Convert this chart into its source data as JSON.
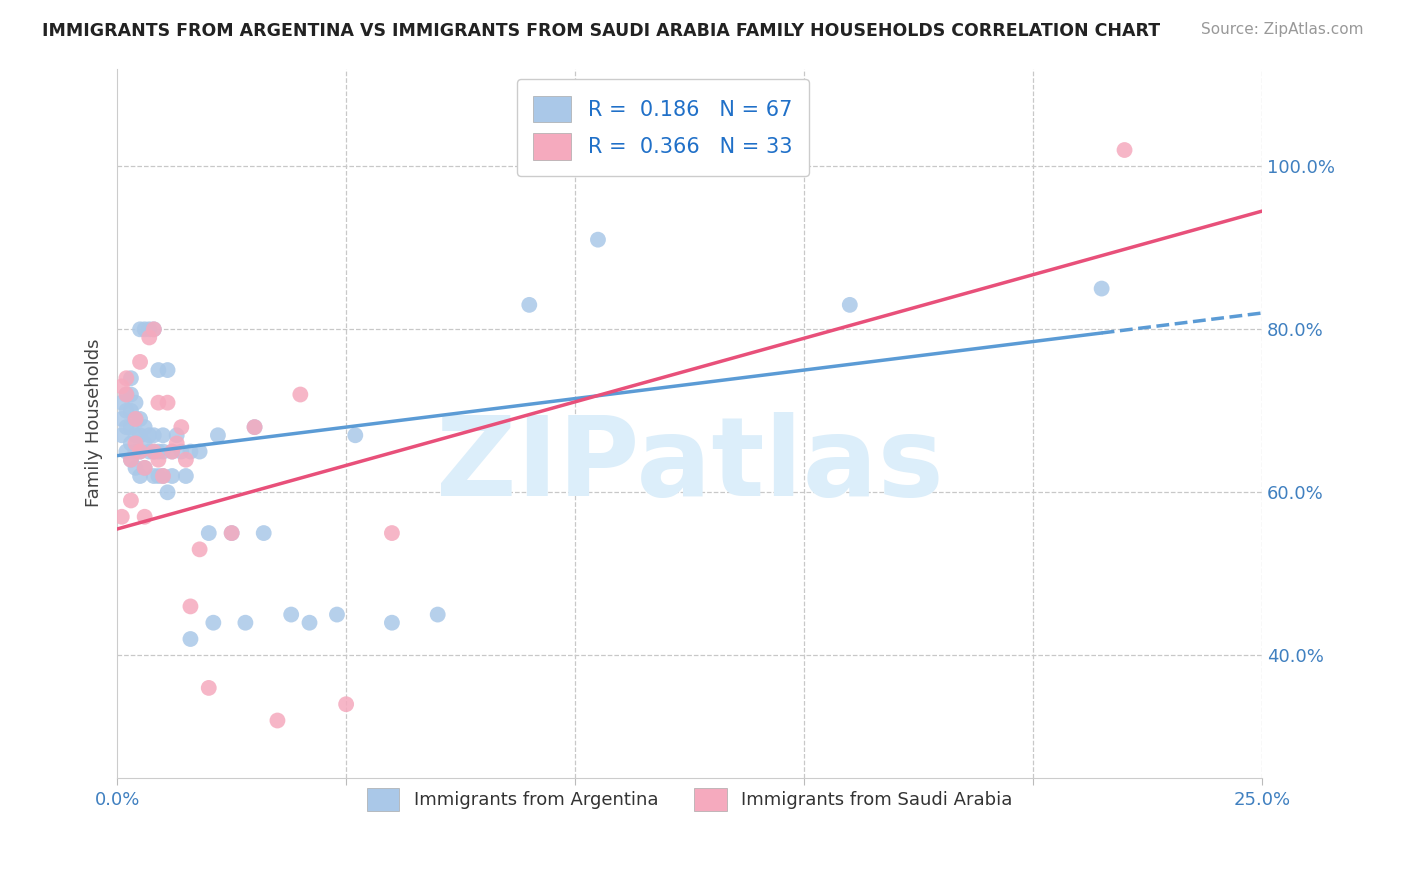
{
  "title": "IMMIGRANTS FROM ARGENTINA VS IMMIGRANTS FROM SAUDI ARABIA FAMILY HOUSEHOLDS CORRELATION CHART",
  "source": "Source: ZipAtlas.com",
  "ylabel": "Family Households",
  "xlim": [
    0.0,
    0.25
  ],
  "ylim": [
    0.25,
    1.12
  ],
  "argentina_R": 0.186,
  "argentina_N": 67,
  "saudi_R": 0.366,
  "saudi_N": 33,
  "argentina_color": "#aac8e8",
  "saudi_color": "#f5aabe",
  "argentina_line_color": "#5b9bd5",
  "saudi_line_color": "#e8507a",
  "legend_text_color": "#2070c8",
  "watermark_color": "#dceefa",
  "watermark_text": "ZIPatlas",
  "arg_line_y0": 0.645,
  "arg_line_y1": 0.82,
  "sau_line_y0": 0.555,
  "sau_line_y1": 0.945,
  "argentina_x": [
    0.001,
    0.001,
    0.001,
    0.002,
    0.002,
    0.002,
    0.002,
    0.003,
    0.003,
    0.003,
    0.003,
    0.003,
    0.003,
    0.004,
    0.004,
    0.004,
    0.004,
    0.004,
    0.005,
    0.005,
    0.005,
    0.005,
    0.005,
    0.006,
    0.006,
    0.006,
    0.006,
    0.007,
    0.007,
    0.007,
    0.008,
    0.008,
    0.008,
    0.008,
    0.009,
    0.009,
    0.009,
    0.01,
    0.01,
    0.01,
    0.011,
    0.011,
    0.012,
    0.012,
    0.013,
    0.014,
    0.015,
    0.016,
    0.016,
    0.018,
    0.02,
    0.021,
    0.022,
    0.025,
    0.028,
    0.03,
    0.032,
    0.038,
    0.042,
    0.048,
    0.052,
    0.06,
    0.07,
    0.09,
    0.105,
    0.16,
    0.215
  ],
  "argentina_y": [
    0.67,
    0.69,
    0.71,
    0.65,
    0.68,
    0.7,
    0.72,
    0.64,
    0.66,
    0.68,
    0.7,
    0.72,
    0.74,
    0.63,
    0.65,
    0.67,
    0.69,
    0.71,
    0.62,
    0.65,
    0.67,
    0.69,
    0.8,
    0.63,
    0.66,
    0.68,
    0.8,
    0.65,
    0.67,
    0.8,
    0.62,
    0.65,
    0.67,
    0.8,
    0.62,
    0.65,
    0.75,
    0.62,
    0.65,
    0.67,
    0.6,
    0.75,
    0.62,
    0.65,
    0.67,
    0.65,
    0.62,
    0.65,
    0.42,
    0.65,
    0.55,
    0.44,
    0.67,
    0.55,
    0.44,
    0.68,
    0.55,
    0.45,
    0.44,
    0.45,
    0.67,
    0.44,
    0.45,
    0.83,
    0.91,
    0.83,
    0.85
  ],
  "saudi_x": [
    0.001,
    0.001,
    0.002,
    0.002,
    0.003,
    0.003,
    0.004,
    0.004,
    0.005,
    0.005,
    0.006,
    0.006,
    0.007,
    0.008,
    0.008,
    0.009,
    0.009,
    0.01,
    0.011,
    0.012,
    0.013,
    0.014,
    0.015,
    0.016,
    0.018,
    0.02,
    0.025,
    0.03,
    0.035,
    0.04,
    0.05,
    0.06,
    0.22
  ],
  "saudi_y": [
    0.57,
    0.73,
    0.72,
    0.74,
    0.59,
    0.64,
    0.66,
    0.69,
    0.65,
    0.76,
    0.57,
    0.63,
    0.79,
    0.65,
    0.8,
    0.64,
    0.71,
    0.62,
    0.71,
    0.65,
    0.66,
    0.68,
    0.64,
    0.46,
    0.53,
    0.36,
    0.55,
    0.68,
    0.32,
    0.72,
    0.34,
    0.55,
    1.02
  ]
}
